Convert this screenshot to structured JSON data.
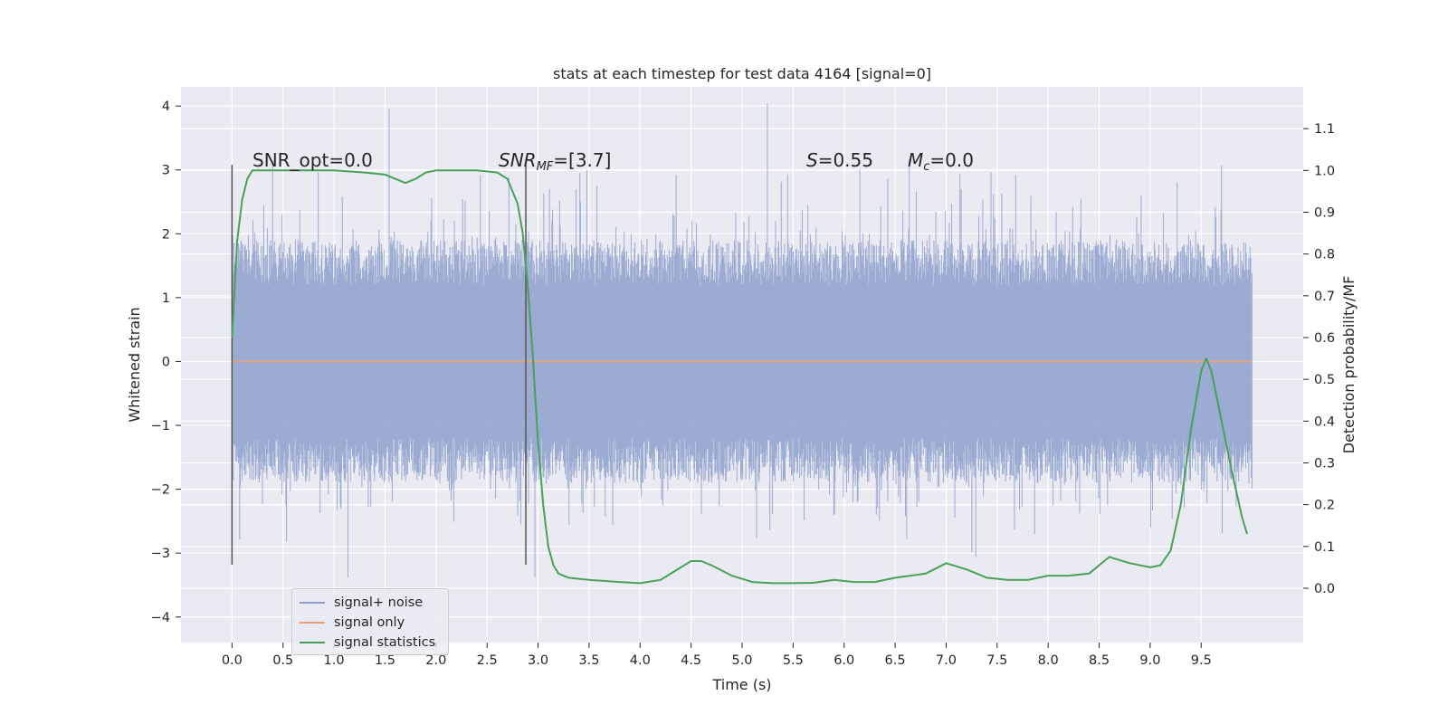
{
  "chart_data": {
    "type": "line",
    "title": "stats at each timestep for test data 4164 [signal=0]",
    "xlabel": "Time (s)",
    "ylabel": "Whitened strain",
    "y2label": "Detection probability/MF",
    "xlim": [
      -0.5,
      10.5
    ],
    "ylim": [
      -4.4,
      4.3
    ],
    "y2lim": [
      -0.13,
      1.2
    ],
    "x_ticks": [
      0.0,
      0.5,
      1.0,
      1.5,
      2.0,
      2.5,
      3.0,
      3.5,
      4.0,
      4.5,
      5.0,
      5.5,
      6.0,
      6.5,
      7.0,
      7.5,
      8.0,
      8.5,
      9.0,
      9.5
    ],
    "x_tick_labels": [
      "0.0",
      "0.5",
      "1.0",
      "1.5",
      "2.0",
      "2.5",
      "3.0",
      "3.5",
      "4.0",
      "4.5",
      "5.0",
      "5.5",
      "6.0",
      "6.5",
      "7.0",
      "7.5",
      "8.0",
      "8.5",
      "9.0",
      "9.5"
    ],
    "y_ticks": [
      -4,
      -3,
      -2,
      -1,
      0,
      1,
      2,
      3,
      4
    ],
    "y_tick_labels": [
      "−4",
      "−3",
      "−2",
      "−1",
      "0",
      "1",
      "2",
      "3",
      "4"
    ],
    "y2_ticks": [
      0.0,
      0.1,
      0.2,
      0.3,
      0.4,
      0.5,
      0.6,
      0.7,
      0.8,
      0.9,
      1.0,
      1.1
    ],
    "y2_tick_labels": [
      "0.0",
      "0.1",
      "0.2",
      "0.3",
      "0.4",
      "0.5",
      "0.6",
      "0.7",
      "0.8",
      "0.9",
      "1.0",
      "1.1"
    ],
    "grid": true,
    "legend_position": "lower-left",
    "series": [
      {
        "name": "signal+ noise",
        "axis": "left",
        "color": "#8da0cb",
        "style": "dense noise, approx. gaussian, amplitude range about -4 to 4",
        "x_range": [
          0.0,
          10.0
        ]
      },
      {
        "name": "signal only",
        "axis": "left",
        "color": "#e8a07a",
        "x": [
          0.0,
          10.0
        ],
        "y": [
          0.0,
          0.0
        ]
      },
      {
        "name": "signal statistics",
        "axis": "right",
        "color": "#4aa05a",
        "x": [
          0.0,
          0.05,
          0.1,
          0.15,
          0.2,
          0.3,
          0.5,
          0.8,
          1.0,
          1.3,
          1.5,
          1.6,
          1.7,
          1.8,
          1.9,
          2.0,
          2.2,
          2.4,
          2.6,
          2.7,
          2.8,
          2.85,
          2.9,
          2.95,
          3.0,
          3.05,
          3.1,
          3.15,
          3.2,
          3.3,
          3.5,
          3.8,
          4.0,
          4.2,
          4.4,
          4.5,
          4.6,
          4.7,
          4.9,
          5.1,
          5.3,
          5.5,
          5.7,
          5.9,
          6.1,
          6.3,
          6.5,
          6.8,
          7.0,
          7.2,
          7.4,
          7.6,
          7.8,
          8.0,
          8.2,
          8.4,
          8.6,
          8.8,
          9.0,
          9.1,
          9.2,
          9.3,
          9.4,
          9.5,
          9.55,
          9.6,
          9.7,
          9.8,
          9.9,
          9.95
        ],
        "y": [
          0.6,
          0.83,
          0.93,
          0.98,
          1.0,
          1.0,
          1.0,
          1.0,
          1.0,
          0.995,
          0.99,
          0.98,
          0.97,
          0.98,
          0.995,
          1.0,
          1.0,
          1.0,
          0.995,
          0.98,
          0.92,
          0.85,
          0.72,
          0.55,
          0.35,
          0.2,
          0.1,
          0.055,
          0.035,
          0.025,
          0.02,
          0.015,
          0.012,
          0.02,
          0.05,
          0.065,
          0.065,
          0.055,
          0.03,
          0.015,
          0.012,
          0.012,
          0.013,
          0.02,
          0.015,
          0.015,
          0.025,
          0.035,
          0.06,
          0.045,
          0.025,
          0.02,
          0.02,
          0.03,
          0.03,
          0.035,
          0.075,
          0.06,
          0.05,
          0.055,
          0.09,
          0.2,
          0.38,
          0.52,
          0.55,
          0.52,
          0.4,
          0.28,
          0.17,
          0.13
        ]
      }
    ],
    "annotations": [
      {
        "text": "SNR_opt=0.0"
      },
      {
        "text": "SNR",
        "sub": "MF",
        "tail": "=[3.7]"
      },
      {
        "text": "S",
        "tail": "=0.55"
      },
      {
        "text": "M",
        "sub": "c",
        "tail": "=0.0"
      }
    ],
    "vertical_markers": [
      0.0,
      2.88
    ]
  }
}
